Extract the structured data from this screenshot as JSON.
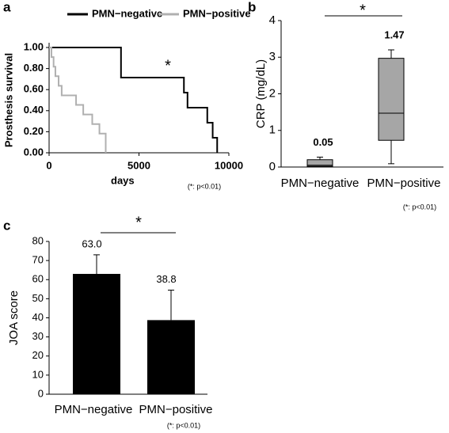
{
  "chart_data": [
    {
      "type": "line",
      "panel_label": "a",
      "xlabel": "days",
      "ylabel": "Prosthesis survival",
      "annotation": "*",
      "note": "(*: p<0.01)",
      "xlim": [
        0,
        10000
      ],
      "xticks": [
        0,
        5000,
        10000
      ],
      "ylim": [
        0,
        1
      ],
      "yticks": [
        {
          "value": 0,
          "label": "0.00"
        },
        {
          "value": 0.2,
          "label": "0.20"
        },
        {
          "value": 0.4,
          "label": "0.40"
        },
        {
          "value": 0.6,
          "label": "0.60"
        },
        {
          "value": 0.8,
          "label": "0.80"
        },
        {
          "value": 1,
          "label": "1.00"
        }
      ],
      "series": [
        {
          "name": "PMN−negative",
          "color": "#000000",
          "x": [
            0,
            4000,
            7500,
            7700,
            8800,
            9100,
            9350
          ],
          "values": [
            1,
            0.714,
            0.571,
            0.429,
            0.286,
            0.143,
            0
          ]
        },
        {
          "name": "PMN−positive",
          "color": "#b0b0b0",
          "x": [
            0,
            130,
            250,
            350,
            530,
            700,
            1500,
            1900,
            2400,
            2800,
            3150
          ],
          "values": [
            1,
            0.909,
            0.818,
            0.727,
            0.636,
            0.545,
            0.455,
            0.364,
            0.273,
            0.182,
            0
          ]
        }
      ]
    },
    {
      "type": "box",
      "panel_label": "b",
      "ylabel": "CRP (mg/dL)",
      "annotation": "*",
      "note": "(*: p<0.01)",
      "color": "#a6a6a6",
      "categories": [
        "PMN−negative",
        "PMN−positive"
      ],
      "boxes": [
        {
          "min": 0,
          "q1": 0.02,
          "median": 0.05,
          "q3": 0.2,
          "max": 0.27
        },
        {
          "min": 0.09,
          "q1": 0.73,
          "median": 1.47,
          "q3": 2.97,
          "max": 3.2
        }
      ],
      "ylim": [
        0,
        4
      ],
      "yticks": [
        0,
        1,
        2,
        3,
        4
      ]
    },
    {
      "type": "bar",
      "panel_label": "c",
      "ylabel": "JOA score",
      "annotation": "*",
      "note": "(*: p<0.01)",
      "color": "#000000",
      "categories": [
        "PMN−negative",
        "PMN−positive"
      ],
      "values": [
        63.0,
        38.8
      ],
      "value_labels": [
        "63.0",
        "38.8"
      ],
      "errors": [
        10,
        15.7
      ],
      "ylim": [
        0,
        80
      ],
      "yticks": [
        0,
        10,
        20,
        30,
        40,
        50,
        60,
        70,
        80
      ]
    }
  ]
}
